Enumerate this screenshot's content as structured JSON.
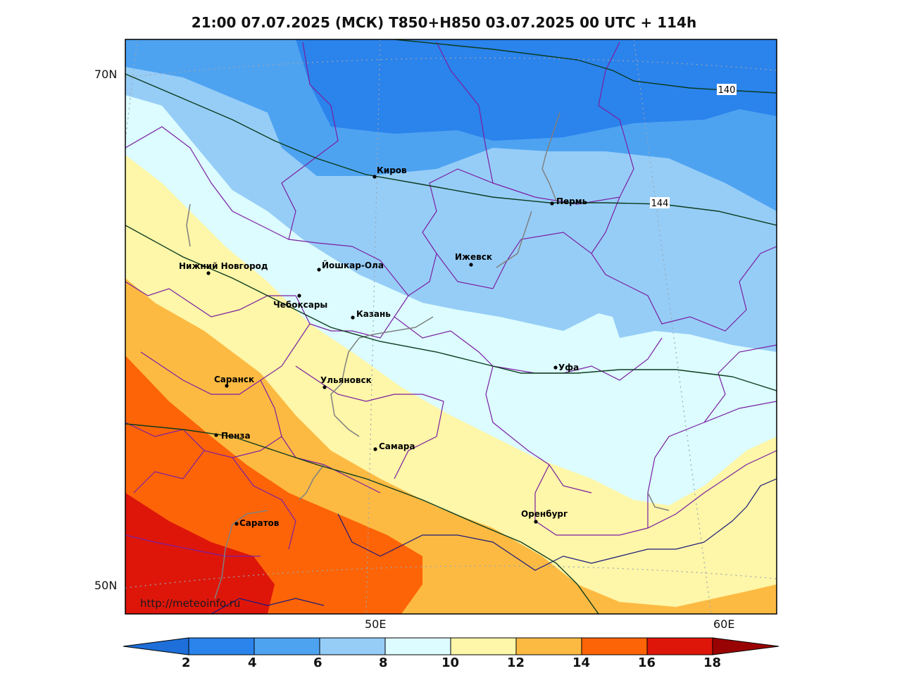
{
  "title": "21:00 07.07.2025 (МСК) T850+H850 03.07.2025 00 UTC + 114h",
  "watermark": "http://meteoinfo.ru",
  "axes": {
    "lat_labels": [
      "70N",
      "50N"
    ],
    "lon_labels": [
      "50E",
      "60E"
    ]
  },
  "contour_labels": [
    "140",
    "144"
  ],
  "cities": [
    {
      "name": "Киров"
    },
    {
      "name": "Пермь"
    },
    {
      "name": "Нижний Новгород"
    },
    {
      "name": "Йошкар-Ола"
    },
    {
      "name": "Ижевск"
    },
    {
      "name": "Чебоксары"
    },
    {
      "name": "Казань"
    },
    {
      "name": "Уфа"
    },
    {
      "name": "Саранск"
    },
    {
      "name": "Ульяновск"
    },
    {
      "name": "Пенза"
    },
    {
      "name": "Самара"
    },
    {
      "name": "Оренбург"
    },
    {
      "name": "Саратов"
    }
  ],
  "colorbar": {
    "ticks": [
      "2",
      "4",
      "6",
      "8",
      "10",
      "12",
      "14",
      "16",
      "18"
    ],
    "colors": [
      "#1e6fd9",
      "#2b83ec",
      "#4ea3f1",
      "#96cdf7",
      "#dcfcff",
      "#fef6a8",
      "#fdba42",
      "#fd6407",
      "#de160a",
      "#9a0303"
    ]
  }
}
